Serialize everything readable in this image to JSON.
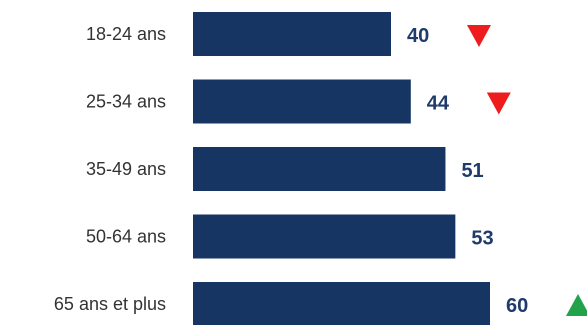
{
  "chart_data": {
    "type": "bar",
    "orientation": "horizontal",
    "categories": [
      "18-24 ans",
      "25-34 ans",
      "35-49 ans",
      "50-64 ans",
      "65 ans et plus"
    ],
    "values": [
      40,
      44,
      51,
      53,
      60
    ],
    "value_labels": [
      "40",
      "44",
      "51",
      "53",
      "60"
    ],
    "trend": [
      "down",
      "down",
      "none",
      "none",
      "up"
    ],
    "xlim": [
      0,
      60
    ],
    "grid": false,
    "legend": "none",
    "colors": {
      "bar": "#173563",
      "value_text": "#1f3b6b",
      "trend_down": "#ee1c1c",
      "trend_up": "#22a24a"
    },
    "trend_icons": {
      "down": "red-down-triangle-icon",
      "up": "green-up-triangle-icon"
    }
  }
}
